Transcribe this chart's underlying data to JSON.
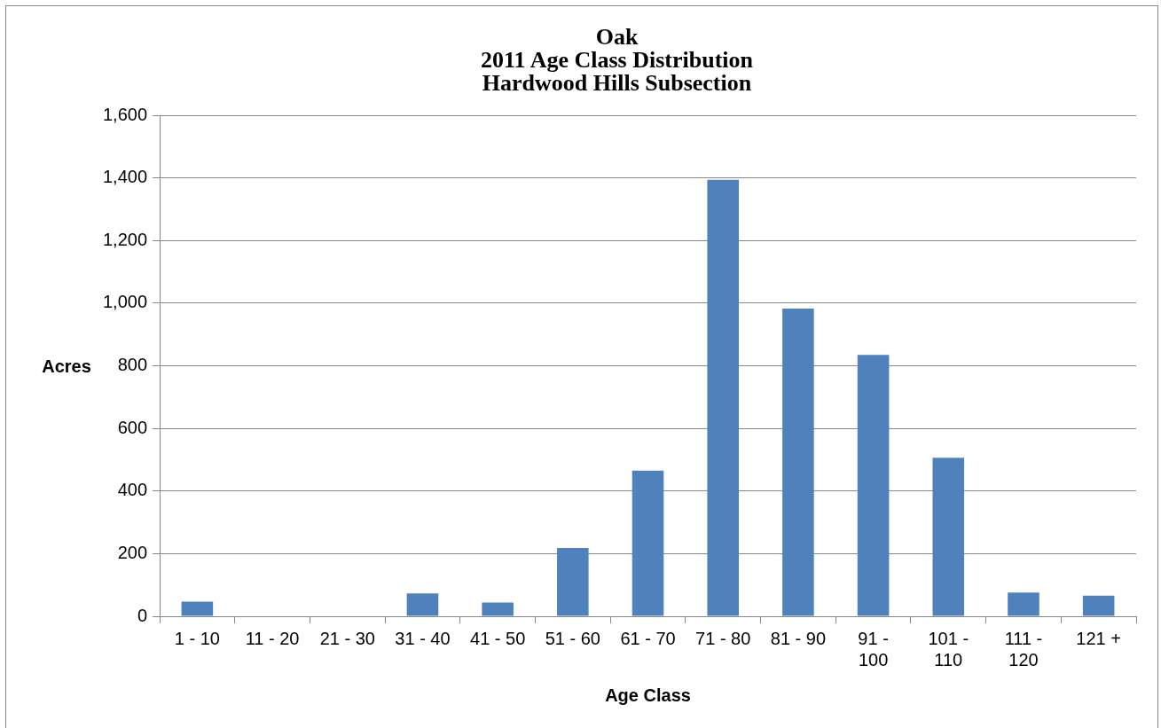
{
  "chart_data": {
    "type": "bar",
    "title": "Oak\n2011 Age Class Distribution\nHardwood Hills Subsection",
    "xlabel": "Age Class",
    "ylabel": "Acres",
    "categories": [
      "1 - 10",
      "11 - 20",
      "21 - 30",
      "31 - 40",
      "41 - 50",
      "51 - 60",
      "61 - 70",
      "71 - 80",
      "81 - 90",
      "91 - 100",
      "101 - 110",
      "111 - 120",
      "121 +"
    ],
    "values": [
      47,
      0,
      0,
      73,
      44,
      218,
      465,
      1394,
      983,
      835,
      506,
      76,
      66
    ],
    "color": "#4f81bd",
    "ylim": [
      0,
      1600
    ],
    "yticks": [
      0,
      200,
      400,
      600,
      800,
      {
        "value": 1000,
        "label": "1,000"
      },
      {
        "value": 1200,
        "label": "1,200"
      },
      {
        "value": 1400,
        "label": "1,400"
      },
      {
        "value": 1600,
        "label": "1,600"
      }
    ],
    "grid": "y"
  }
}
